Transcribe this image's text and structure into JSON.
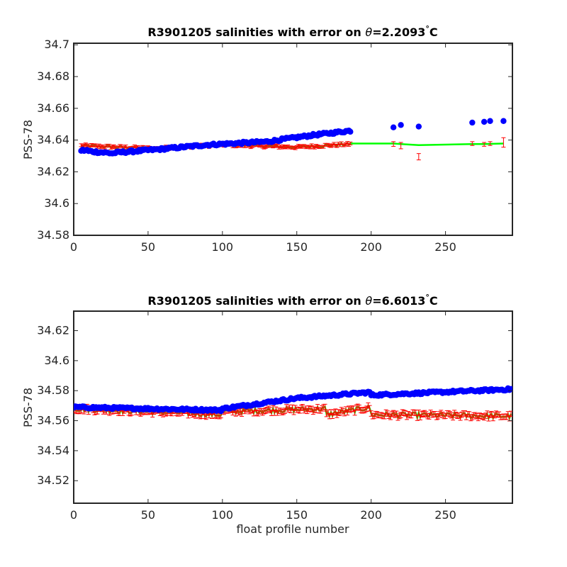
{
  "colors": {
    "float": "#0000ff",
    "mapped": "#00ff00",
    "error": "#ff0000",
    "axis": "#262626"
  },
  "xlabel_bottom": "float profile number",
  "chart_data": [
    {
      "type": "scatter",
      "title_main": "R3901205 salinities with error on ",
      "title_theta": "θ",
      "title_value": "=2.2093",
      "title_deg": "°",
      "title_unit": "C",
      "xlabel": "",
      "ylabel": "PSS-78",
      "xlim": [
        0,
        295
      ],
      "ylim": [
        34.58,
        34.701
      ],
      "xticks": [
        0,
        50,
        100,
        150,
        200,
        250
      ],
      "xtick_labels": [
        "0",
        "50",
        "100",
        "150",
        "200",
        "250"
      ],
      "yticks": [
        34.58,
        34.6,
        34.62,
        34.64,
        34.66,
        34.68,
        34.7
      ],
      "ytick_labels": [
        "34.58",
        "34.6",
        "34.62",
        "34.64",
        "34.66",
        "34.68",
        "34.7"
      ],
      "float_series": {
        "segments": [
          {
            "x0": 5,
            "x1": 10,
            "y0": 34.6335,
            "y1": 34.6335
          },
          {
            "x0": 10,
            "x1": 28,
            "y0": 34.633,
            "y1": 34.6315
          },
          {
            "x0": 28,
            "x1": 55,
            "y0": 34.632,
            "y1": 34.634
          },
          {
            "x0": 55,
            "x1": 90,
            "y0": 34.634,
            "y1": 34.637
          },
          {
            "x0": 90,
            "x1": 130,
            "y0": 34.637,
            "y1": 34.639
          },
          {
            "x0": 130,
            "x1": 160,
            "y0": 34.639,
            "y1": 34.643
          },
          {
            "x0": 160,
            "x1": 187,
            "y0": 34.643,
            "y1": 34.646
          }
        ],
        "isolated": [
          [
            215,
            34.648
          ],
          [
            220,
            34.6495
          ],
          [
            232,
            34.6485
          ],
          [
            268,
            34.651
          ],
          [
            276,
            34.6515
          ],
          [
            280,
            34.652
          ],
          [
            289,
            34.652
          ]
        ]
      },
      "mapped_series": {
        "segments": [
          {
            "x0": 5,
            "x1": 60,
            "y0": 34.6365,
            "y1": 34.6345
          },
          {
            "x0": 60,
            "x1": 100,
            "y0": 34.635,
            "y1": 34.637
          },
          {
            "x0": 100,
            "x1": 150,
            "y0": 34.637,
            "y1": 34.6355
          },
          {
            "x0": 150,
            "x1": 187,
            "y0": 34.6355,
            "y1": 34.6375
          }
        ],
        "line": [
          [
            187,
            34.6378
          ],
          [
            215,
            34.6378
          ],
          [
            220,
            34.6375
          ],
          [
            232,
            34.6368
          ],
          [
            268,
            34.6375
          ],
          [
            276,
            34.6375
          ],
          [
            280,
            34.6376
          ],
          [
            289,
            34.6378
          ]
        ],
        "error_bars_extra": [
          [
            215,
            34.6375,
            0.0015
          ],
          [
            220,
            34.6365,
            0.002
          ],
          [
            232,
            34.6295,
            0.002
          ],
          [
            268,
            34.6378,
            0.0012
          ],
          [
            276,
            34.6373,
            0.0012
          ],
          [
            280,
            34.6378,
            0.0012
          ],
          [
            289,
            34.6385,
            0.003
          ]
        ],
        "err": 0.0015
      }
    },
    {
      "type": "scatter",
      "title_main": "R3901205 salinities with error on ",
      "title_theta": "θ",
      "title_value": "=6.6013",
      "title_deg": "°",
      "title_unit": "C",
      "xlabel": "float profile number",
      "ylabel": "PSS-78",
      "xlim": [
        0,
        295
      ],
      "ylim": [
        34.505,
        34.633
      ],
      "xticks": [
        0,
        50,
        100,
        150,
        200,
        250
      ],
      "xtick_labels": [
        "0",
        "50",
        "100",
        "150",
        "200",
        "250"
      ],
      "yticks": [
        34.52,
        34.54,
        34.56,
        34.58,
        34.6,
        34.62
      ],
      "ytick_labels": [
        "34.52",
        "34.54",
        "34.56",
        "34.58",
        "34.6",
        "34.62"
      ],
      "float_series": {
        "segments": [
          {
            "x0": 0,
            "x1": 100,
            "y0": 34.569,
            "y1": 34.567
          },
          {
            "x0": 100,
            "x1": 150,
            "y0": 34.568,
            "y1": 34.575
          },
          {
            "x0": 150,
            "x1": 200,
            "y0": 34.575,
            "y1": 34.579
          },
          {
            "x0": 200,
            "x1": 295,
            "y0": 34.577,
            "y1": 34.581
          }
        ],
        "isolated": []
      },
      "mapped_series": {
        "segments": [
          {
            "x0": 0,
            "x1": 100,
            "y0": 34.568,
            "y1": 34.564
          },
          {
            "x0": 100,
            "x1": 170,
            "y0": 34.566,
            "y1": 34.568
          },
          {
            "x0": 170,
            "x1": 200,
            "y0": 34.564,
            "y1": 34.569
          },
          {
            "x0": 200,
            "x1": 295,
            "y0": 34.564,
            "y1": 34.563
          }
        ],
        "line": [],
        "error_bars_extra": [],
        "err": 0.003
      }
    }
  ]
}
